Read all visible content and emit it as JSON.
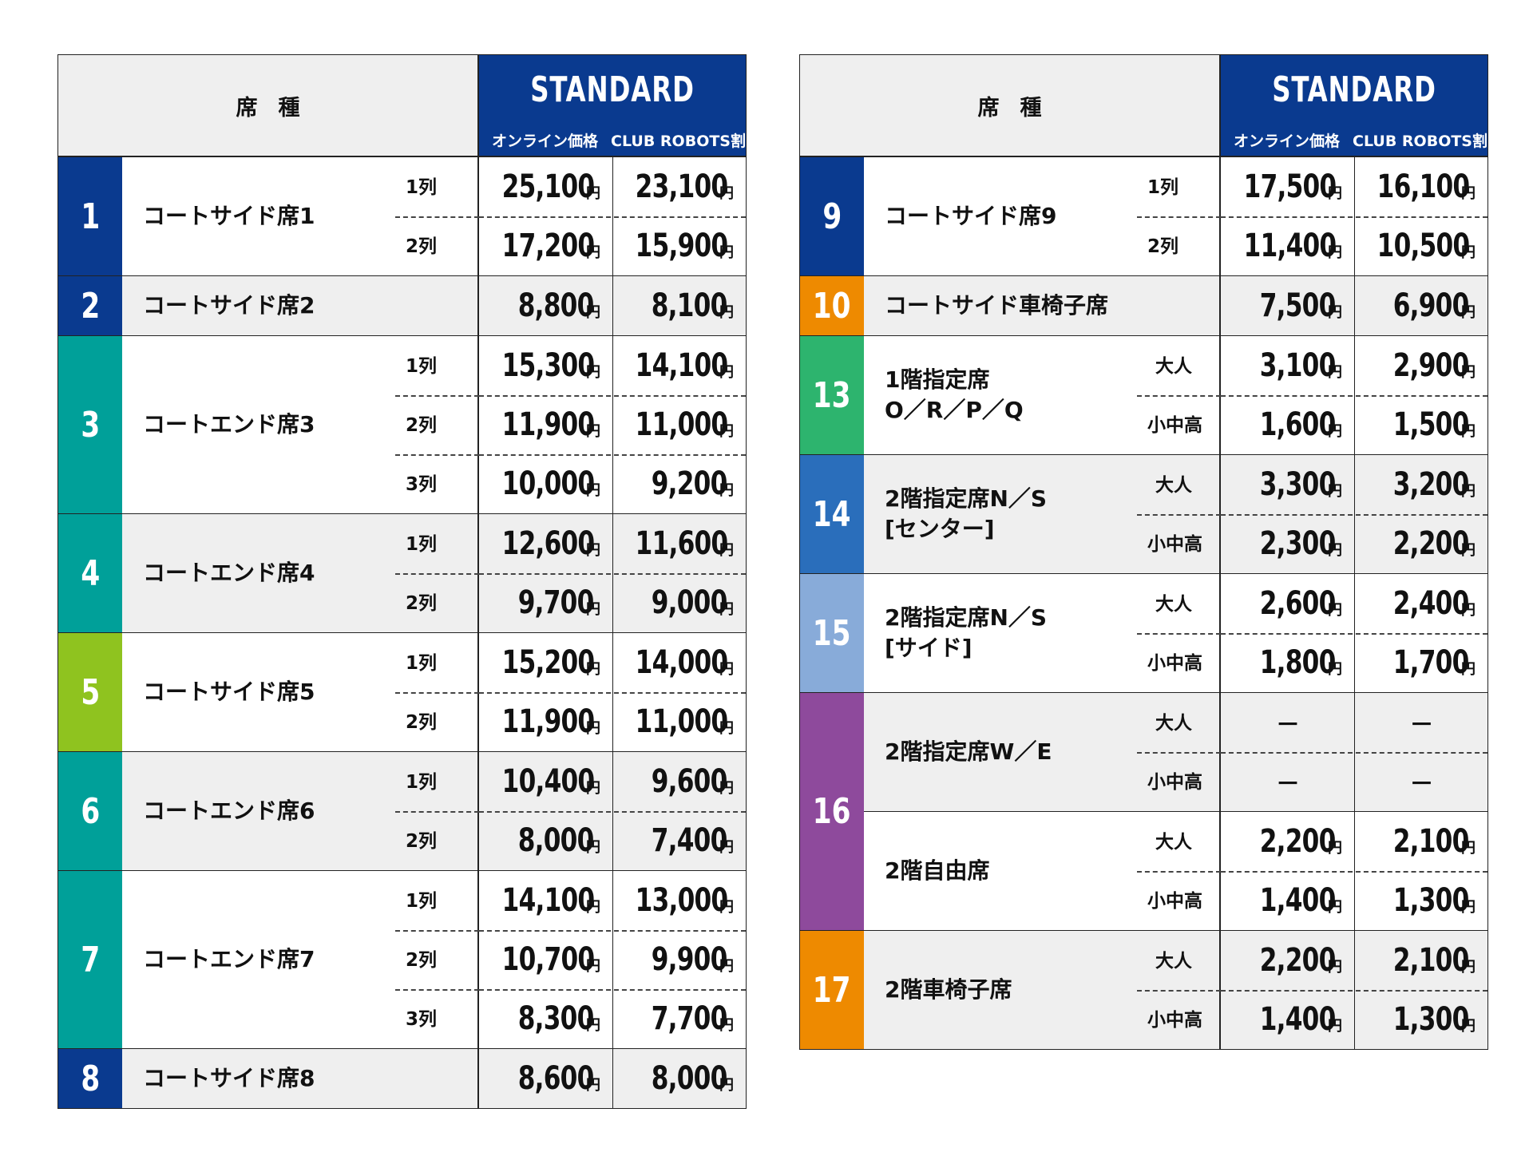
{
  "header": {
    "seat_type": "席種",
    "plan": "STANDARD",
    "col_online": "オンライン価格",
    "col_club": "CLUB ROBOTS割",
    "yen": "円"
  },
  "colors": {
    "navy": "#0a3a8f",
    "teal": "#00a099",
    "lime": "#8fc31f",
    "green": "#2db46e",
    "blue": "#2a6ebb",
    "lightblue": "#88abd9",
    "purple": "#8e4a9c",
    "orange": "#ee8a00"
  },
  "left_groups": [
    {
      "num": "1",
      "color": "#0a3a8f",
      "bg": "white",
      "subs": [
        {
          "name": "コートサイド席1",
          "rows": [
            {
              "label": "1列",
              "online": "25,100",
              "club": "23,100"
            },
            {
              "label": "2列",
              "online": "17,200",
              "club": "15,900"
            }
          ]
        }
      ]
    },
    {
      "num": "2",
      "color": "#0a3a8f",
      "bg": "gray",
      "subs": [
        {
          "name": "コートサイド席2",
          "rows": [
            {
              "label": "",
              "online": "8,800",
              "club": "8,100"
            }
          ]
        }
      ]
    },
    {
      "num": "3",
      "color": "#00a099",
      "bg": "white",
      "subs": [
        {
          "name": "コートエンド席3",
          "rows": [
            {
              "label": "1列",
              "online": "15,300",
              "club": "14,100"
            },
            {
              "label": "2列",
              "online": "11,900",
              "club": "11,000"
            },
            {
              "label": "3列",
              "online": "10,000",
              "club": "9,200"
            }
          ]
        }
      ]
    },
    {
      "num": "4",
      "color": "#00a099",
      "bg": "gray",
      "subs": [
        {
          "name": "コートエンド席4",
          "rows": [
            {
              "label": "1列",
              "online": "12,600",
              "club": "11,600"
            },
            {
              "label": "2列",
              "online": "9,700",
              "club": "9,000"
            }
          ]
        }
      ]
    },
    {
      "num": "5",
      "color": "#8fc31f",
      "bg": "white",
      "subs": [
        {
          "name": "コートサイド席5",
          "rows": [
            {
              "label": "1列",
              "online": "15,200",
              "club": "14,000"
            },
            {
              "label": "2列",
              "online": "11,900",
              "club": "11,000"
            }
          ]
        }
      ]
    },
    {
      "num": "6",
      "color": "#00a099",
      "bg": "gray",
      "subs": [
        {
          "name": "コートエンド席6",
          "rows": [
            {
              "label": "1列",
              "online": "10,400",
              "club": "9,600"
            },
            {
              "label": "2列",
              "online": "8,000",
              "club": "7,400"
            }
          ]
        }
      ]
    },
    {
      "num": "7",
      "color": "#00a099",
      "bg": "white",
      "subs": [
        {
          "name": "コートエンド席7",
          "rows": [
            {
              "label": "1列",
              "online": "14,100",
              "club": "13,000"
            },
            {
              "label": "2列",
              "online": "10,700",
              "club": "9,900"
            },
            {
              "label": "3列",
              "online": "8,300",
              "club": "7,700"
            }
          ]
        }
      ]
    },
    {
      "num": "8",
      "color": "#0a3a8f",
      "bg": "gray",
      "subs": [
        {
          "name": "コートサイド席8",
          "rows": [
            {
              "label": "",
              "online": "8,600",
              "club": "8,000"
            }
          ]
        }
      ]
    }
  ],
  "right_groups": [
    {
      "num": "9",
      "color": "#0a3a8f",
      "bg": "white",
      "subs": [
        {
          "name": "コートサイド席9",
          "rows": [
            {
              "label": "1列",
              "online": "17,500",
              "club": "16,100"
            },
            {
              "label": "2列",
              "online": "11,400",
              "club": "10,500"
            }
          ]
        }
      ]
    },
    {
      "num": "10",
      "color": "#ee8a00",
      "bg": "gray",
      "subs": [
        {
          "name": "コートサイド車椅子席",
          "rows": [
            {
              "label": "",
              "online": "7,500",
              "club": "6,900"
            }
          ]
        }
      ]
    },
    {
      "num": "13",
      "color": "#2db46e",
      "bg": "white",
      "subs": [
        {
          "name": "1階指定席\nO／R／P／Q",
          "rows": [
            {
              "label": "大人",
              "online": "3,100",
              "club": "2,900"
            },
            {
              "label": "小中高",
              "online": "1,600",
              "club": "1,500"
            }
          ]
        }
      ]
    },
    {
      "num": "14",
      "color": "#2a6ebb",
      "bg": "gray",
      "subs": [
        {
          "name": "2階指定席N／S\n[センター]",
          "rows": [
            {
              "label": "大人",
              "online": "3,300",
              "club": "3,200"
            },
            {
              "label": "小中高",
              "online": "2,300",
              "club": "2,200"
            }
          ]
        }
      ]
    },
    {
      "num": "15",
      "color": "#88abd9",
      "bg": "white",
      "subs": [
        {
          "name": "2階指定席N／S\n[サイド]",
          "rows": [
            {
              "label": "大人",
              "online": "2,600",
              "club": "2,400"
            },
            {
              "label": "小中高",
              "online": "1,800",
              "club": "1,700"
            }
          ]
        }
      ]
    },
    {
      "num": "16",
      "color": "#8e4a9c",
      "bg": "gray",
      "subs": [
        {
          "name": "2階指定席W／E",
          "bg": "gray",
          "rows": [
            {
              "label": "大人",
              "online": "－",
              "club": "－"
            },
            {
              "label": "小中高",
              "online": "－",
              "club": "－"
            }
          ]
        },
        {
          "name": "2階自由席",
          "bg": "white",
          "rows": [
            {
              "label": "大人",
              "online": "2,200",
              "club": "2,100"
            },
            {
              "label": "小中高",
              "online": "1,400",
              "club": "1,300"
            }
          ]
        }
      ]
    },
    {
      "num": "17",
      "color": "#ee8a00",
      "bg": "gray",
      "subs": [
        {
          "name": "2階車椅子席",
          "rows": [
            {
              "label": "大人",
              "online": "2,200",
              "club": "2,100"
            },
            {
              "label": "小中高",
              "online": "1,400",
              "club": "1,300"
            }
          ]
        }
      ]
    }
  ]
}
